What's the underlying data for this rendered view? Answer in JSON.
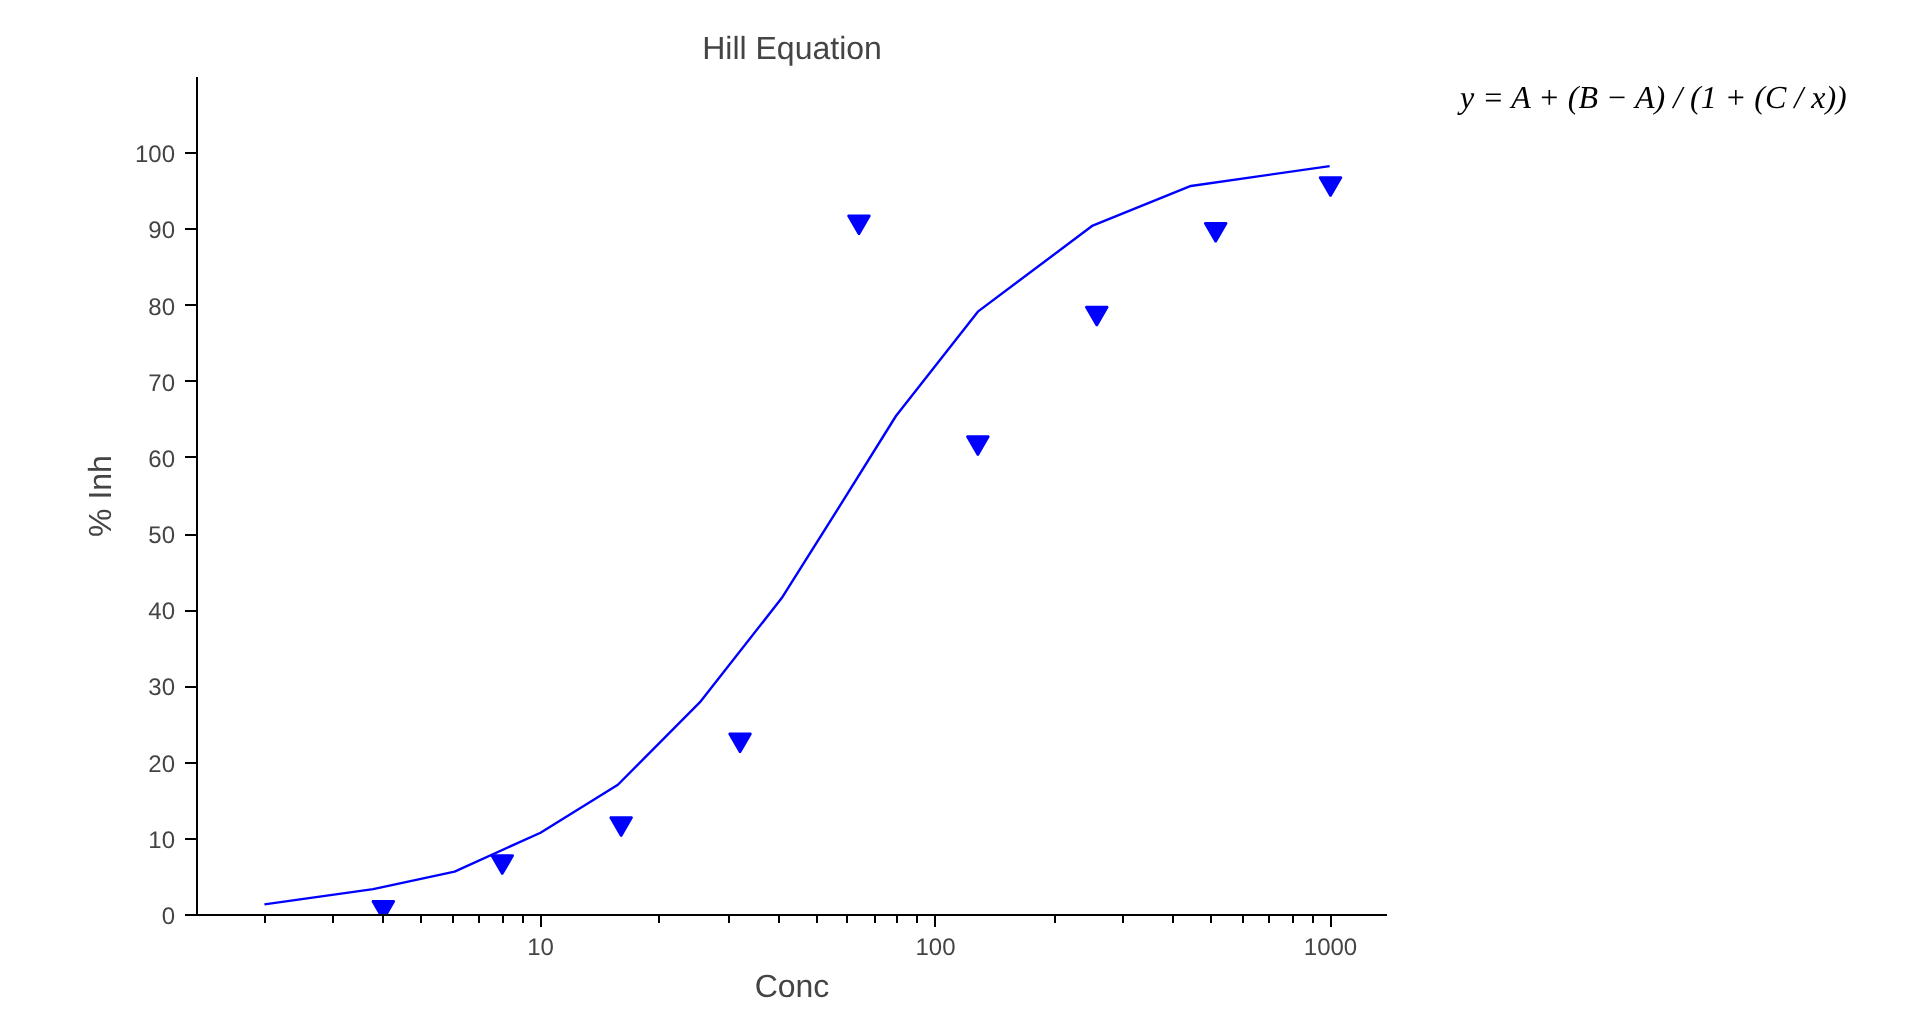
{
  "chart_data": {
    "type": "scatter",
    "title": "Hill Equation",
    "xlabel": "Conc",
    "ylabel": "% Inh",
    "log": "x",
    "grid": false,
    "xlim": [
      1.35,
      1390
    ],
    "ylim": [
      0,
      110
    ],
    "xticks": [
      {
        "value": 2,
        "label": null
      },
      {
        "value": 3,
        "label": null
      },
      {
        "value": 4,
        "label": null
      },
      {
        "value": 5,
        "label": null
      },
      {
        "value": 6,
        "label": null
      },
      {
        "value": 7,
        "label": null
      },
      {
        "value": 8,
        "label": null
      },
      {
        "value": 9,
        "label": null
      },
      10,
      {
        "value": 20,
        "label": null
      },
      {
        "value": 30,
        "label": null
      },
      {
        "value": 40,
        "label": null
      },
      {
        "value": 50,
        "label": null
      },
      {
        "value": 60,
        "label": null
      },
      {
        "value": 70,
        "label": null
      },
      {
        "value": 80,
        "label": null
      },
      {
        "value": 90,
        "label": null
      },
      100,
      {
        "value": 200,
        "label": null
      },
      {
        "value": 300,
        "label": null
      },
      {
        "value": 400,
        "label": null
      },
      {
        "value": 500,
        "label": null
      },
      {
        "value": 600,
        "label": null
      },
      {
        "value": 700,
        "label": null
      },
      {
        "value": 800,
        "label": null
      },
      {
        "value": 900,
        "label": null
      },
      1000
    ],
    "yticks": [
      0,
      10,
      20,
      30,
      40,
      50,
      60,
      70,
      80,
      90,
      100
    ],
    "series": [
      {
        "marker": "triangle",
        "color": "#0000ff",
        "x": [
          4,
          8,
          16,
          32,
          64,
          128,
          256,
          512,
          1000
        ],
        "values": [
          1,
          7,
          12,
          23,
          91,
          62,
          79,
          90,
          96
        ]
      },
      {
        "type": "line",
        "marker": "none",
        "line_style": "solid",
        "color": "#0000ff",
        "x": [
          2,
          3.77,
          6.06,
          10,
          15.7,
          25.3,
          40.8,
          59.7,
          79.4,
          128,
          250,
          443,
          995
        ],
        "values": [
          1.4,
          3.4,
          5.7,
          10.8,
          17.1,
          27.9,
          41.6,
          55.2,
          65.5,
          79.2,
          90.5,
          95.7,
          98.3
        ]
      }
    ],
    "annotations": [
      "y = A + (B − A) / (1 + (C / x))"
    ]
  }
}
